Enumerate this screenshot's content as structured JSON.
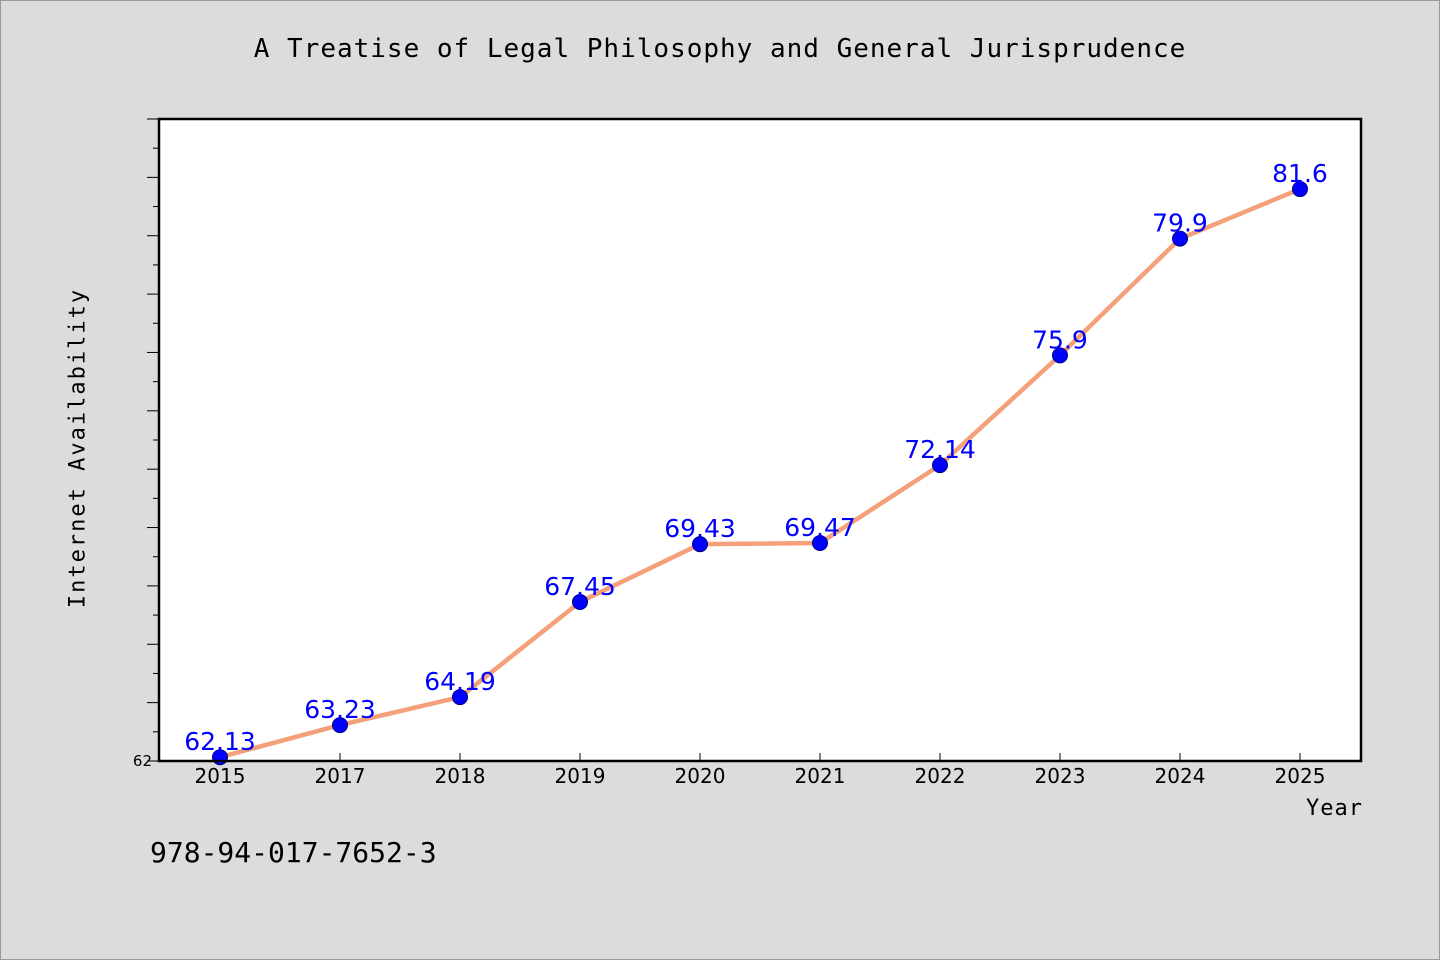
{
  "page": {
    "footer_text": "978-94-017-7652-3"
  },
  "colors": {
    "background": "#dcdcdc",
    "plot_background": "#ffffff",
    "line": "#f4a07a",
    "marker": "#0000ff",
    "data_label": "#0000ff"
  },
  "chart_data": {
    "type": "line",
    "title": "A Treatise of Legal Philosophy and General Jurisprudence",
    "xlabel": "Year",
    "ylabel": "Internet Availability",
    "categories": [
      "2015",
      "2017",
      "2018",
      "2019",
      "2020",
      "2021",
      "2022",
      "2023",
      "2024",
      "2025"
    ],
    "series": [
      {
        "values": [
          62.13,
          63.23,
          64.19,
          67.45,
          69.43,
          69.47,
          72.14,
          75.9,
          79.9,
          81.6
        ],
        "labels": [
          "62.13",
          "63.23",
          "64.19",
          "67.45",
          "69.43",
          "69.47",
          "72.14",
          "75.9",
          "79.9",
          "81.6"
        ]
      }
    ],
    "ylim": [
      62,
      84
    ],
    "y_tick_labels": [
      "62"
    ],
    "y_minor_tick_step": 1,
    "grid": false,
    "legend": "none",
    "marker": "circle"
  }
}
